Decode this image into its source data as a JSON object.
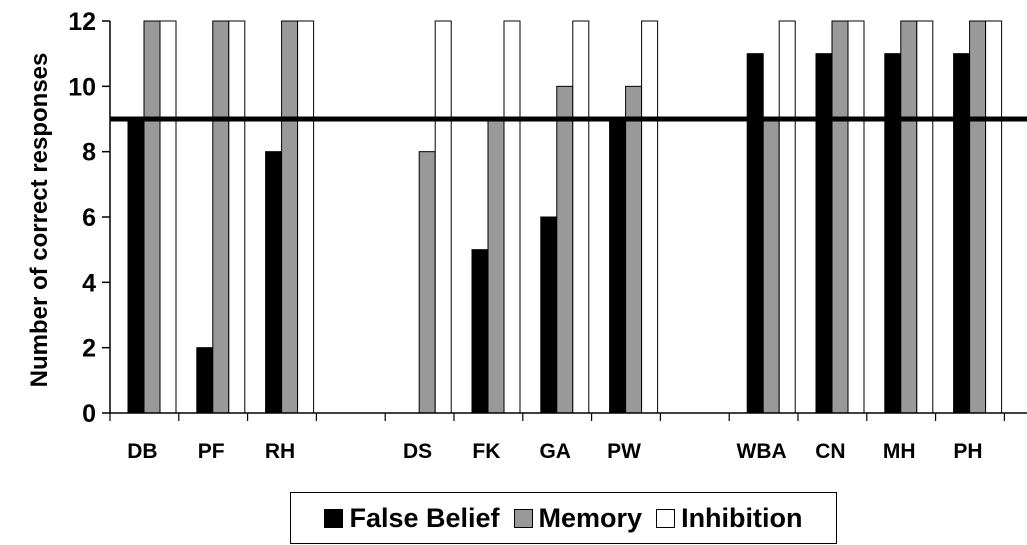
{
  "chart_data": {
    "type": "bar",
    "ylabel": "Number of correct responses",
    "xlabel": "",
    "ylim": [
      0,
      12
    ],
    "yticks": [
      0,
      2,
      4,
      6,
      8,
      10,
      12
    ],
    "categories": [
      "DB",
      "PF",
      "RH",
      "",
      "DS",
      "FK",
      "GA",
      "PW",
      "",
      "WBA",
      "CN",
      "MH",
      "PH"
    ],
    "series": [
      {
        "name": "False Belief",
        "color": "#000000",
        "values": [
          9,
          2,
          8,
          null,
          0,
          5,
          6,
          9,
          null,
          11,
          11,
          11,
          11
        ]
      },
      {
        "name": "Memory",
        "color": "#999999",
        "values": [
          12,
          12,
          12,
          null,
          8,
          9,
          10,
          10,
          null,
          9,
          12,
          12,
          12
        ]
      },
      {
        "name": "Inhibition",
        "color": "#ffffff",
        "values": [
          12,
          12,
          12,
          null,
          12,
          12,
          12,
          12,
          null,
          12,
          12,
          12,
          12
        ]
      }
    ],
    "reference_line": 9,
    "legend_position": "bottom",
    "grid": false
  }
}
